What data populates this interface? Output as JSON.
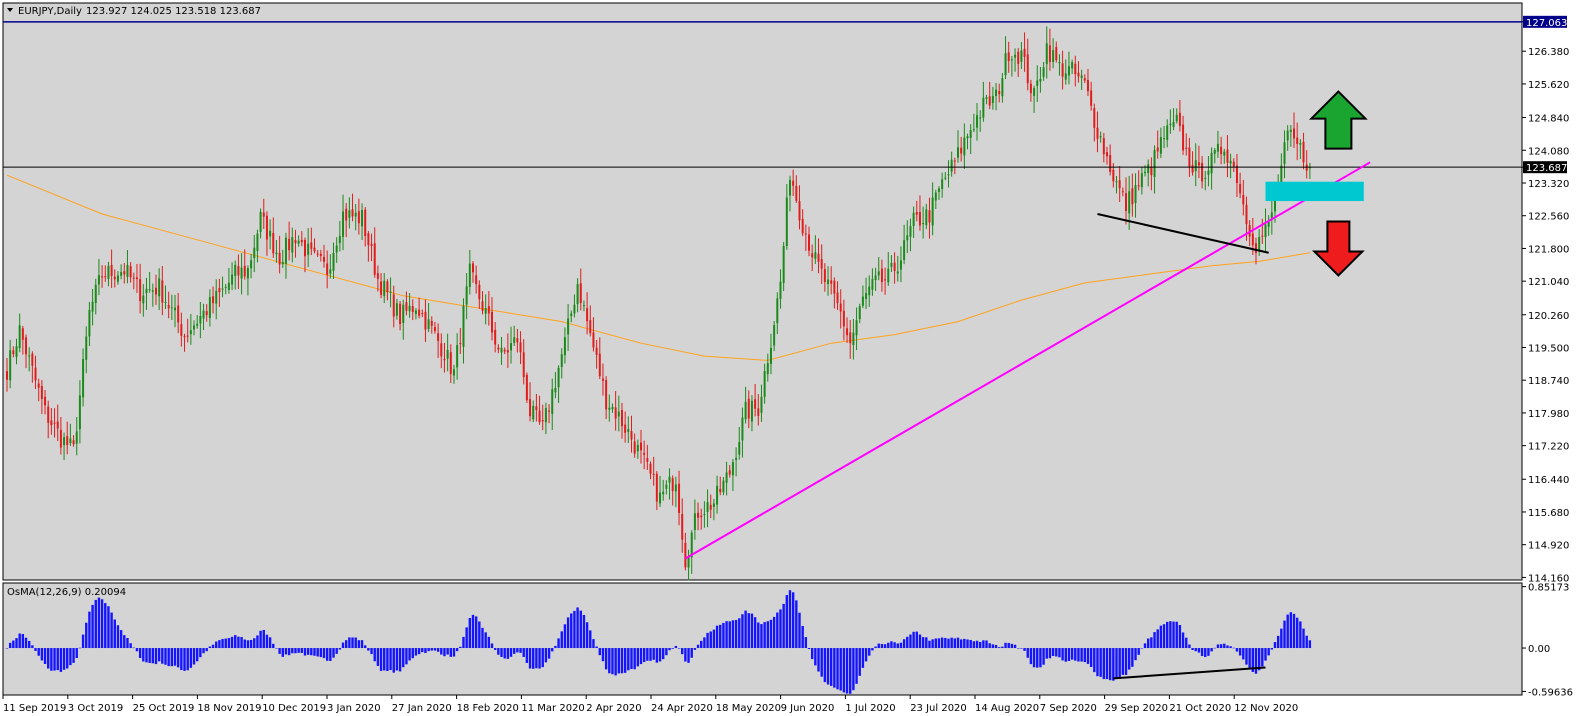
{
  "header": {
    "symbol": "EURJPY,Daily",
    "ohlc": "123.927 124.025 123.518 123.687"
  },
  "osma_header": {
    "label": "OsMA(12,26,9) 0.20094"
  },
  "colors": {
    "background": "#d4d4d4",
    "bull": "#1a8a1a",
    "bear": "#e21b1b",
    "ma": "#ffa21d",
    "trendline": "#ff00ff",
    "resistance": "#00008b",
    "current_line": "#000000",
    "zone": "#00c8d0",
    "osma": "#1414ff",
    "arrow_up": "#1aa530",
    "arrow_down": "#ee1c1c"
  },
  "icons": {
    "menu": "triangle-down-icon",
    "up": "arrow-up-icon",
    "down": "arrow-down-icon"
  },
  "chart_data": {
    "type": "candlestick",
    "price_axis": {
      "range": [
        114.1,
        127.5
      ],
      "ticks": [
        "127.063",
        "126.380",
        "125.620",
        "124.840",
        "124.080",
        "123.687",
        "123.320",
        "122.560",
        "121.800",
        "121.040",
        "120.260",
        "119.500",
        "118.740",
        "117.980",
        "117.220",
        "116.440",
        "115.680",
        "114.920",
        "114.160"
      ],
      "highlight": {
        "resistance": "127.063",
        "current": "123.687"
      }
    },
    "osma_axis": {
      "range": [
        -0.65,
        0.9
      ],
      "ticks": [
        "0.85173",
        "0.00",
        "-0.59636"
      ]
    },
    "x_ticks": [
      "11 Sep 2019",
      "3 Oct 2019",
      "25 Oct 2019",
      "18 Nov 2019",
      "10 Dec 2019",
      "3 Jan 2020",
      "27 Jan 2020",
      "18 Feb 2020",
      "11 Mar 2020",
      "2 Apr 2020",
      "24 Apr 2020",
      "18 May 2020",
      "9 Jun 2020",
      "1 Jul 2020",
      "23 Jul 2020",
      "14 Aug 2020",
      "7 Sep 2020",
      "29 Sep 2020",
      "21 Oct 2020",
      "12 Nov 2020"
    ],
    "anchors": [
      [
        0,
        119.0
      ],
      [
        4,
        119.9
      ],
      [
        12,
        118.0
      ],
      [
        17,
        117.4
      ],
      [
        21,
        117.1
      ],
      [
        26,
        120.3
      ],
      [
        30,
        121.2
      ],
      [
        37,
        121.3
      ],
      [
        42,
        120.8
      ],
      [
        48,
        120.9
      ],
      [
        56,
        119.8
      ],
      [
        62,
        120.3
      ],
      [
        68,
        120.8
      ],
      [
        72,
        121.2
      ],
      [
        76,
        121.3
      ],
      [
        80,
        122.5
      ],
      [
        86,
        121.6
      ],
      [
        91,
        122.1
      ],
      [
        96,
        121.6
      ],
      [
        101,
        121.3
      ],
      [
        106,
        122.6
      ],
      [
        112,
        122.5
      ],
      [
        117,
        121.1
      ],
      [
        124,
        120.2
      ],
      [
        129,
        120.5
      ],
      [
        134,
        119.9
      ],
      [
        138,
        119.4
      ],
      [
        141,
        118.9
      ],
      [
        146,
        121.2
      ],
      [
        151,
        120.3
      ],
      [
        156,
        119.3
      ],
      [
        161,
        119.7
      ],
      [
        165,
        118.0
      ],
      [
        169,
        117.6
      ],
      [
        176,
        119.6
      ],
      [
        180,
        121.0
      ],
      [
        184,
        119.8
      ],
      [
        189,
        118.3
      ],
      [
        193,
        117.9
      ],
      [
        197,
        117.4
      ],
      [
        201,
        116.8
      ],
      [
        206,
        116.0
      ],
      [
        211,
        116.5
      ],
      [
        214,
        114.6
      ],
      [
        218,
        115.7
      ],
      [
        223,
        115.9
      ],
      [
        228,
        116.6
      ],
      [
        233,
        118.0
      ],
      [
        237,
        118.1
      ],
      [
        241,
        119.7
      ],
      [
        244,
        121.0
      ],
      [
        247,
        123.6
      ],
      [
        251,
        122.4
      ],
      [
        255,
        121.5
      ],
      [
        259,
        120.9
      ],
      [
        263,
        120.3
      ],
      [
        266,
        119.6
      ],
      [
        270,
        120.6
      ],
      [
        274,
        121.0
      ],
      [
        278,
        121.1
      ],
      [
        282,
        121.6
      ],
      [
        286,
        122.4
      ],
      [
        291,
        122.6
      ],
      [
        295,
        123.3
      ],
      [
        299,
        123.8
      ],
      [
        304,
        124.6
      ],
      [
        308,
        125.1
      ],
      [
        312,
        125.3
      ],
      [
        316,
        126.4
      ],
      [
        320,
        126.3
      ],
      [
        324,
        125.3
      ],
      [
        328,
        126.5
      ],
      [
        332,
        126.0
      ],
      [
        336,
        125.9
      ],
      [
        340,
        125.6
      ],
      [
        343,
        124.8
      ],
      [
        347,
        123.9
      ],
      [
        350,
        123.3
      ],
      [
        353,
        122.8
      ],
      [
        357,
        123.3
      ],
      [
        361,
        123.7
      ],
      [
        365,
        124.4
      ],
      [
        369,
        124.7
      ],
      [
        372,
        124.0
      ],
      [
        376,
        123.5
      ],
      [
        380,
        123.8
      ],
      [
        384,
        124.2
      ],
      [
        388,
        123.5
      ],
      [
        391,
        122.5
      ],
      [
        394,
        121.9
      ],
      [
        398,
        122.3
      ],
      [
        401,
        123.3
      ],
      [
        404,
        124.4
      ],
      [
        408,
        124.1
      ],
      [
        411,
        123.687
      ]
    ],
    "ma200": [
      [
        0,
        123.5
      ],
      [
        30,
        122.6
      ],
      [
        60,
        122.0
      ],
      [
        95,
        121.3
      ],
      [
        125,
        120.7
      ],
      [
        150,
        120.4
      ],
      [
        175,
        120.1
      ],
      [
        200,
        119.6
      ],
      [
        220,
        119.3
      ],
      [
        240,
        119.2
      ],
      [
        260,
        119.6
      ],
      [
        280,
        119.8
      ],
      [
        300,
        120.1
      ],
      [
        320,
        120.6
      ],
      [
        340,
        121.0
      ],
      [
        360,
        121.2
      ],
      [
        380,
        121.4
      ],
      [
        395,
        121.5
      ],
      [
        411,
        121.7
      ]
    ],
    "support_trendline": [
      [
        214,
        114.6
      ],
      [
        430,
        123.8
      ]
    ],
    "black_trendline_price": [
      [
        344,
        122.6
      ],
      [
        398,
        121.7
      ]
    ],
    "resistance_level": 127.063,
    "current_price": 123.687,
    "zone": {
      "from_bar": 397,
      "to_bar": 428,
      "low": 122.9,
      "high": 123.35
    },
    "osma_trendline": [
      [
        349,
        -0.42
      ],
      [
        397,
        -0.27
      ]
    ],
    "arrows": [
      {
        "dir": "up",
        "bar": 420,
        "price": 124.7
      },
      {
        "dir": "down",
        "bar": 420,
        "price": 121.8
      }
    ]
  }
}
